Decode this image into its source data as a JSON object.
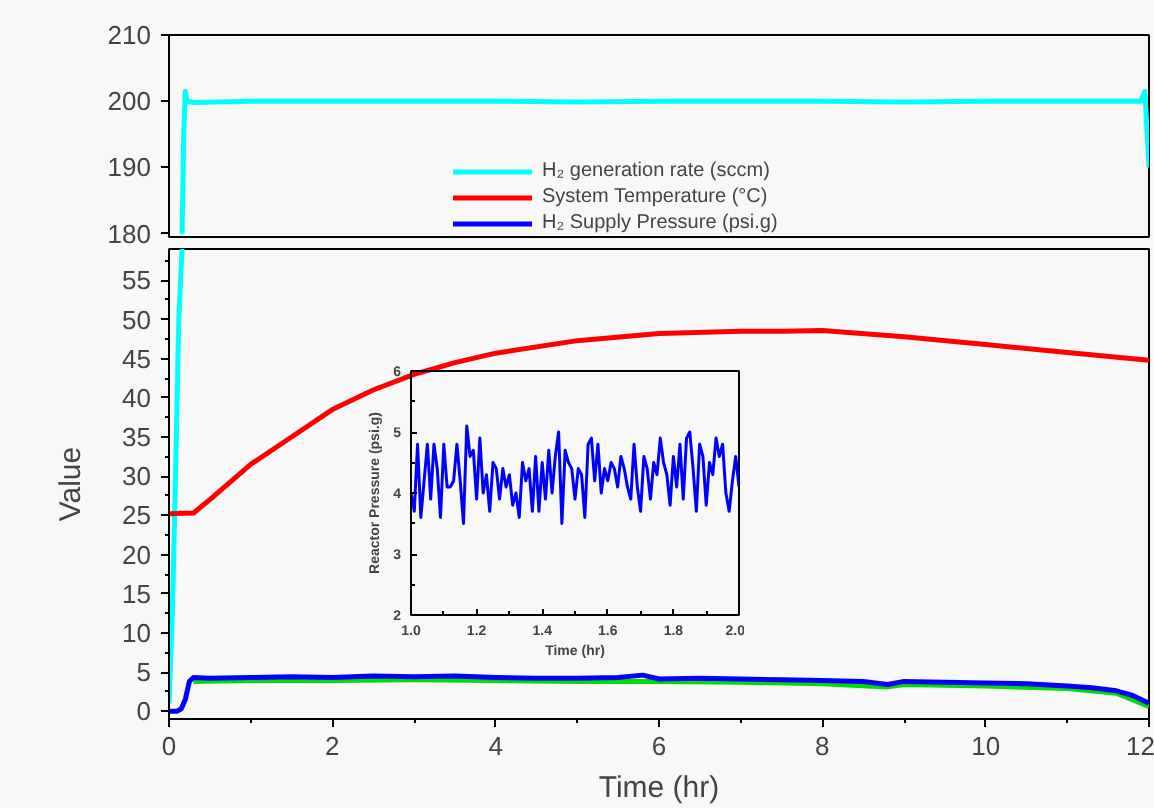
{
  "chart_data": [
    {
      "type": "line",
      "tick_labels": "y",
      "xlim": [
        0,
        12
      ],
      "xticks": [
        0,
        2,
        4,
        6,
        8,
        10,
        12
      ],
      "ylim": [
        179.5,
        210
      ],
      "yticks": [
        180,
        190,
        200,
        210
      ],
      "series": [
        {
          "color": "#00ffff",
          "x": [
            0.16,
            0.18,
            0.2,
            0.22,
            0.3,
            1,
            2,
            3,
            4,
            5,
            6,
            7,
            8,
            9,
            10,
            11,
            11.9,
            11.95,
            12
          ],
          "values": [
            180,
            195,
            201.5,
            200,
            199.8,
            200,
            200,
            200,
            200,
            199.9,
            200,
            200,
            200,
            199.9,
            200,
            200,
            200,
            201.5,
            190
          ]
        }
      ]
    },
    {
      "type": "line",
      "xlabel": "Time (hr)",
      "ylabel": "Value",
      "xlim": [
        0,
        12
      ],
      "xticks": [
        0,
        2,
        4,
        6,
        8,
        10,
        12
      ],
      "ylim": [
        -1,
        59
      ],
      "yticks": [
        0,
        5,
        10,
        15,
        20,
        25,
        30,
        35,
        40,
        45,
        50,
        55
      ],
      "legend": "top",
      "series": [
        {
          "name": "H₂ generation rate (sccm)",
          "color": "#00ffff",
          "x": [
            0,
            0.04,
            0.08,
            0.12,
            0.16
          ],
          "values": [
            1,
            12,
            30,
            50,
            59
          ]
        },
        {
          "name": "System Temperature (°C)",
          "color": "#ff0000",
          "x": [
            0,
            0.3,
            0.5,
            1,
            1.5,
            2,
            2.5,
            3,
            3.5,
            4,
            5,
            6,
            7,
            7.5,
            8,
            9,
            10,
            11,
            12
          ],
          "values": [
            25.2,
            25.3,
            27,
            31.5,
            35,
            38.5,
            41,
            43,
            44.5,
            45.7,
            47.3,
            48.2,
            48.5,
            48.5,
            48.6,
            47.8,
            46.8,
            45.8,
            44.8
          ]
        },
        {
          "color": "#00dd00",
          "x": [
            0.3,
            1,
            2,
            3,
            4,
            5,
            6,
            7,
            8,
            8.8,
            9,
            10,
            11,
            11.6,
            12
          ],
          "values": [
            3.8,
            3.9,
            3.9,
            4.0,
            3.9,
            3.8,
            3.8,
            3.7,
            3.5,
            3.1,
            3.4,
            3.2,
            2.9,
            2.3,
            0.6
          ]
        },
        {
          "name": "H₂ Supply Pressure (psi.g)",
          "color": "#0000ff",
          "x": [
            0,
            0.1,
            0.15,
            0.2,
            0.25,
            0.3,
            0.5,
            1,
            1.5,
            2,
            2.5,
            3,
            3.5,
            4,
            4.5,
            5,
            5.5,
            5.8,
            6,
            6.5,
            7,
            7.5,
            8,
            8.5,
            8.8,
            9,
            9.5,
            10,
            10.5,
            11,
            11.3,
            11.6,
            11.8,
            12
          ],
          "values": [
            0,
            0,
            0.3,
            1.5,
            3.8,
            4.3,
            4.2,
            4.3,
            4.4,
            4.3,
            4.5,
            4.4,
            4.5,
            4.3,
            4.2,
            4.2,
            4.3,
            4.6,
            4.1,
            4.2,
            4.1,
            4.0,
            3.9,
            3.8,
            3.4,
            3.8,
            3.7,
            3.6,
            3.5,
            3.2,
            3.0,
            2.6,
            2.0,
            1.0
          ]
        }
      ]
    },
    {
      "type": "line",
      "xlabel": "Time (hr)",
      "ylabel": "Reactor Pressure (psi.g)",
      "xlim": [
        1,
        2
      ],
      "xticks": [
        {
          "value": 1,
          "label": "1.0"
        },
        1.2,
        1.4,
        1.6,
        1.8,
        {
          "value": 2,
          "label": "2.0"
        }
      ],
      "ylim": [
        2,
        6
      ],
      "yticks": [
        2,
        3,
        4,
        5,
        6
      ],
      "series": [
        {
          "color": "#0000ff",
          "x": [
            1.0,
            1.01,
            1.02,
            1.03,
            1.04,
            1.05,
            1.06,
            1.07,
            1.08,
            1.09,
            1.1,
            1.11,
            1.12,
            1.13,
            1.14,
            1.15,
            1.16,
            1.17,
            1.18,
            1.19,
            1.2,
            1.21,
            1.22,
            1.23,
            1.24,
            1.25,
            1.26,
            1.27,
            1.28,
            1.29,
            1.3,
            1.31,
            1.32,
            1.33,
            1.34,
            1.35,
            1.36,
            1.37,
            1.38,
            1.39,
            1.4,
            1.41,
            1.42,
            1.43,
            1.44,
            1.45,
            1.46,
            1.47,
            1.48,
            1.49,
            1.5,
            1.51,
            1.52,
            1.53,
            1.54,
            1.55,
            1.56,
            1.57,
            1.58,
            1.59,
            1.6,
            1.61,
            1.62,
            1.63,
            1.64,
            1.65,
            1.66,
            1.67,
            1.68,
            1.69,
            1.7,
            1.71,
            1.72,
            1.73,
            1.74,
            1.75,
            1.76,
            1.77,
            1.78,
            1.79,
            1.8,
            1.81,
            1.82,
            1.83,
            1.84,
            1.85,
            1.86,
            1.87,
            1.88,
            1.89,
            1.9,
            1.91,
            1.92,
            1.93,
            1.94,
            1.95,
            1.96,
            1.97,
            1.98,
            1.99,
            2.0
          ],
          "values": [
            4.0,
            3.7,
            4.8,
            3.6,
            4.2,
            4.8,
            3.9,
            4.8,
            4.4,
            3.6,
            4.8,
            4.1,
            4.1,
            4.2,
            4.8,
            4.2,
            3.5,
            5.1,
            4.6,
            4.7,
            3.9,
            4.9,
            4.0,
            4.3,
            3.7,
            4.5,
            4.4,
            3.9,
            4.4,
            4.1,
            4.3,
            3.8,
            4.0,
            3.6,
            4.5,
            4.2,
            4.4,
            3.7,
            4.6,
            3.7,
            4.5,
            3.9,
            4.7,
            4.0,
            4.6,
            5.0,
            3.5,
            4.7,
            4.5,
            4.4,
            3.9,
            4.4,
            4.3,
            3.6,
            4.8,
            4.9,
            4.2,
            4.8,
            4.0,
            4.4,
            4.2,
            4.5,
            4.4,
            4.1,
            4.6,
            4.4,
            4.1,
            3.9,
            4.8,
            4.1,
            3.7,
            4.6,
            4.4,
            3.9,
            4.5,
            4.3,
            4.9,
            4.5,
            4.3,
            3.8,
            4.6,
            4.1,
            4.8,
            3.9,
            4.9,
            5.0,
            4.4,
            3.7,
            4.8,
            4.6,
            3.8,
            4.5,
            4.3,
            4.9,
            4.6,
            4.8,
            4.0,
            3.7,
            4.2,
            4.6,
            4.1
          ]
        }
      ]
    }
  ]
}
